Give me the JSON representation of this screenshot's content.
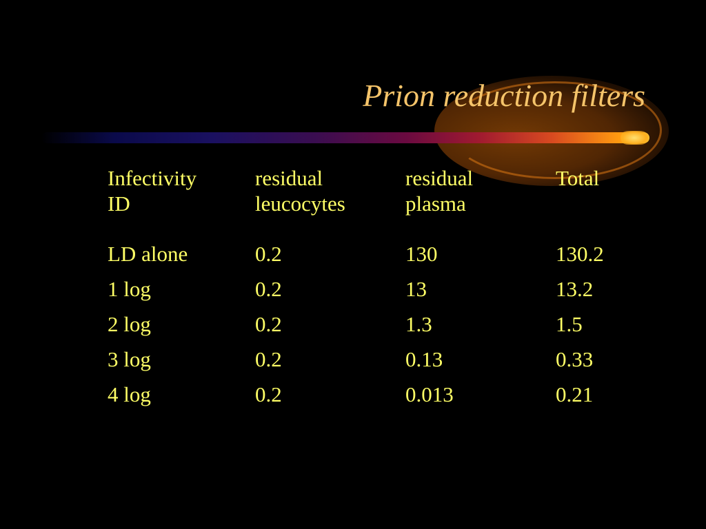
{
  "slide": {
    "title": "Prion reduction filters",
    "colors": {
      "background": "#000000",
      "title": "#f5c46a",
      "table_text": "#ffff66",
      "accent_orange": "#ff9a10"
    }
  },
  "table": {
    "columns": [
      {
        "line1": "Infectivity",
        "line2": "ID"
      },
      {
        "line1": "residual",
        "line2": "leucocytes"
      },
      {
        "line1": "residual",
        "line2": "plasma"
      },
      {
        "line1": "Total",
        "line2": ""
      }
    ],
    "rows": [
      [
        "LD alone",
        "0.2",
        "130",
        "130.2"
      ],
      [
        "1 log",
        "0.2",
        "13",
        "13.2"
      ],
      [
        "2 log",
        "0.2",
        "1.3",
        "1.5"
      ],
      [
        "3 log",
        "0.2",
        "0.13",
        "0.33"
      ],
      [
        "4 log",
        "0.2",
        "0.013",
        "0.21"
      ]
    ]
  }
}
